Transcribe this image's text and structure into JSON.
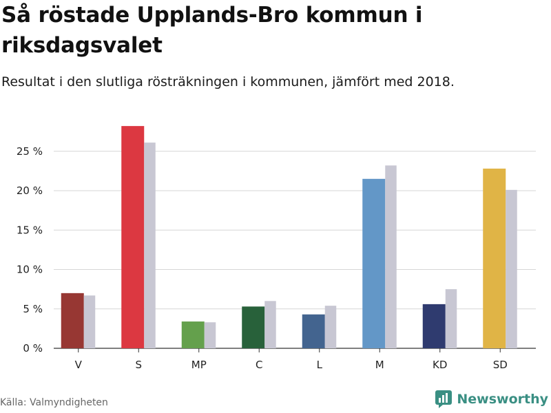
{
  "title": "Så röstade Upplands-Bro kommun i riksdagsvalet",
  "subtitle": "Resultat i den slutliga rösträkningen i kommunen, jämfört med 2018.",
  "source": "Källa: Valmyndigheten",
  "brand": {
    "name": "Newsworthy",
    "icon": "newsworthy-logo-icon",
    "color": "#3a8f83"
  },
  "chart_data": {
    "type": "bar",
    "categories": [
      "V",
      "S",
      "MP",
      "C",
      "L",
      "M",
      "KD",
      "SD"
    ],
    "series": [
      {
        "values": [
          7.0,
          28.2,
          3.4,
          5.3,
          4.3,
          21.5,
          5.6,
          22.8
        ],
        "colors": [
          "#973733",
          "#dc3841",
          "#64a04c",
          "#28613a",
          "#43648f",
          "#6397c7",
          "#2f3b6f",
          "#e0b446"
        ]
      },
      {
        "values": [
          6.7,
          26.1,
          3.3,
          6.0,
          5.4,
          23.2,
          7.5,
          20.1
        ],
        "color": "#c8c7d3"
      }
    ],
    "yticks": [
      "0 %",
      "5 %",
      "10 %",
      "15 %",
      "20 %",
      "25 %"
    ],
    "ytick_values": [
      0,
      5,
      10,
      15,
      20,
      25
    ],
    "ylim": [
      0,
      28.5
    ],
    "grid": true
  }
}
